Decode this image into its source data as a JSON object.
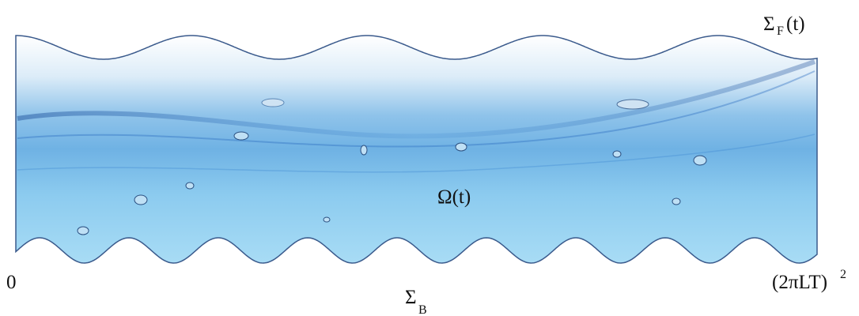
{
  "labels": {
    "free_surface": {
      "symbol": "Σ",
      "subscript": "F",
      "suffix": "(t)"
    },
    "domain": "Ω(t)",
    "origin": "0",
    "right_end": {
      "base": "(2πLT)",
      "superscript": "2"
    },
    "bottom": {
      "symbol": "Σ",
      "subscript": "B"
    }
  }
}
